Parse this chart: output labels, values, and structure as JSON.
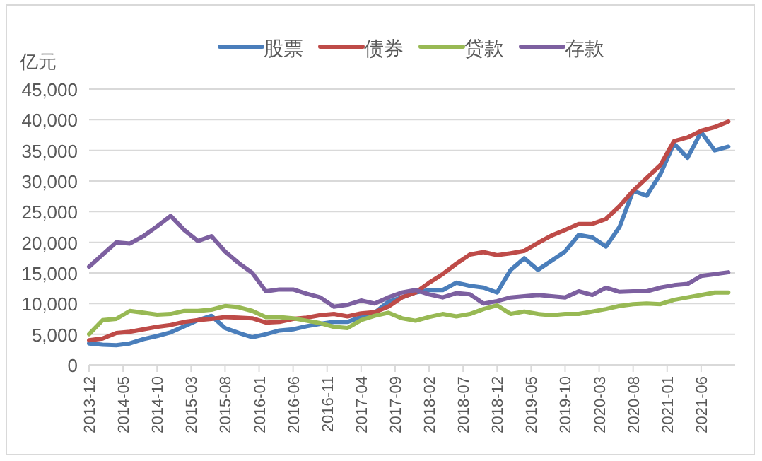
{
  "chart_data": {
    "type": "line",
    "ylabel": "亿元",
    "legend": "top",
    "grid": "y",
    "line_style": "solid",
    "marker": "none",
    "x": [
      "2013-12",
      "2014-02",
      "2014-04",
      "2014-06",
      "2014-08",
      "2014-10",
      "2014-12",
      "2015-02",
      "2015-04",
      "2015-06",
      "2015-08",
      "2015-10",
      "2015-12",
      "2016-02",
      "2016-04",
      "2016-06",
      "2016-08",
      "2016-10",
      "2016-12",
      "2017-02",
      "2017-04",
      "2017-06",
      "2017-08",
      "2017-10",
      "2017-12",
      "2018-02",
      "2018-04",
      "2018-06",
      "2018-08",
      "2018-10",
      "2018-12",
      "2019-02",
      "2019-04",
      "2019-06",
      "2019-08",
      "2019-10",
      "2019-12",
      "2020-02",
      "2020-04",
      "2020-06",
      "2020-08",
      "2020-10",
      "2020-12",
      "2021-02",
      "2021-04",
      "2021-06",
      "2021-08",
      "2021-10"
    ],
    "xlim": [
      "2013-12",
      "2021-11"
    ],
    "xticks": [
      "2013-12",
      "2014-05",
      "2014-10",
      "2015-03",
      "2015-08",
      "2016-01",
      "2016-06",
      "2016-11",
      "2017-04",
      "2017-09",
      "2018-02",
      "2018-07",
      "2018-12",
      "2019-05",
      "2019-10",
      "2020-03",
      "2020-08",
      "2021-01",
      "2021-06"
    ],
    "ylim": [
      0,
      45000
    ],
    "yticks": [
      0,
      {
        "value": 5000,
        "label": "5,000"
      },
      {
        "value": 10000,
        "label": "10,000"
      },
      {
        "value": 15000,
        "label": "15,000"
      },
      {
        "value": 20000,
        "label": "20,000"
      },
      {
        "value": 25000,
        "label": "25,000"
      },
      {
        "value": 30000,
        "label": "30,000"
      },
      {
        "value": 35000,
        "label": "35,000"
      },
      {
        "value": 40000,
        "label": "40,000"
      },
      {
        "value": 45000,
        "label": "45,000"
      }
    ],
    "series": [
      {
        "name": "股票",
        "color": "#4a7ebb",
        "values": [
          3500,
          3300,
          3200,
          3500,
          4200,
          4700,
          5300,
          6300,
          7300,
          8000,
          6000,
          5200,
          4500,
          5000,
          5600,
          5800,
          6300,
          6700,
          7000,
          7000,
          7800,
          8500,
          10300,
          11000,
          11800,
          12200,
          12200,
          13400,
          12900,
          12600,
          11800,
          15500,
          17400,
          15500,
          17000,
          18500,
          21200,
          20800,
          19300,
          22500,
          28400,
          27600,
          31100,
          36100,
          33800,
          38000,
          35000,
          35600
        ]
      },
      {
        "name": "债券",
        "color": "#be4b48",
        "values": [
          4000,
          4300,
          5200,
          5400,
          5800,
          6200,
          6500,
          7000,
          7300,
          7500,
          7800,
          7700,
          7600,
          6900,
          7000,
          7500,
          7700,
          8100,
          8300,
          7900,
          8400,
          8600,
          9500,
          11000,
          11800,
          13400,
          14800,
          16500,
          18000,
          18400,
          17900,
          18200,
          18600,
          19900,
          21100,
          22000,
          23000,
          23000,
          23800,
          25900,
          28400,
          30500,
          32600,
          36500,
          37100,
          38200,
          38800,
          39700
        ]
      },
      {
        "name": "贷款",
        "color": "#98b954",
        "values": [
          5000,
          7300,
          7500,
          8800,
          8500,
          8200,
          8300,
          8800,
          8800,
          9000,
          9600,
          9400,
          8800,
          7800,
          7800,
          7600,
          7200,
          6800,
          6200,
          6000,
          7300,
          8000,
          8500,
          7600,
          7200,
          7800,
          8300,
          7900,
          8300,
          9100,
          9700,
          8300,
          8700,
          8300,
          8100,
          8300,
          8300,
          8700,
          9100,
          9600,
          9900,
          10000,
          9900,
          10600,
          11000,
          11400,
          11800,
          11800
        ]
      },
      {
        "name": "存款",
        "color": "#7d60a0",
        "values": [
          16000,
          18000,
          20000,
          19800,
          21000,
          22600,
          24300,
          22000,
          20200,
          21000,
          18500,
          16600,
          15000,
          12000,
          12300,
          12300,
          11600,
          11000,
          9500,
          9800,
          10500,
          10000,
          11000,
          11800,
          12200,
          11500,
          11000,
          11700,
          11500,
          10000,
          10400,
          11000,
          11200,
          11400,
          11200,
          11000,
          12000,
          11400,
          12600,
          11900,
          12000,
          12000,
          12600,
          13000,
          13200,
          14500,
          14800,
          15100
        ]
      }
    ]
  }
}
